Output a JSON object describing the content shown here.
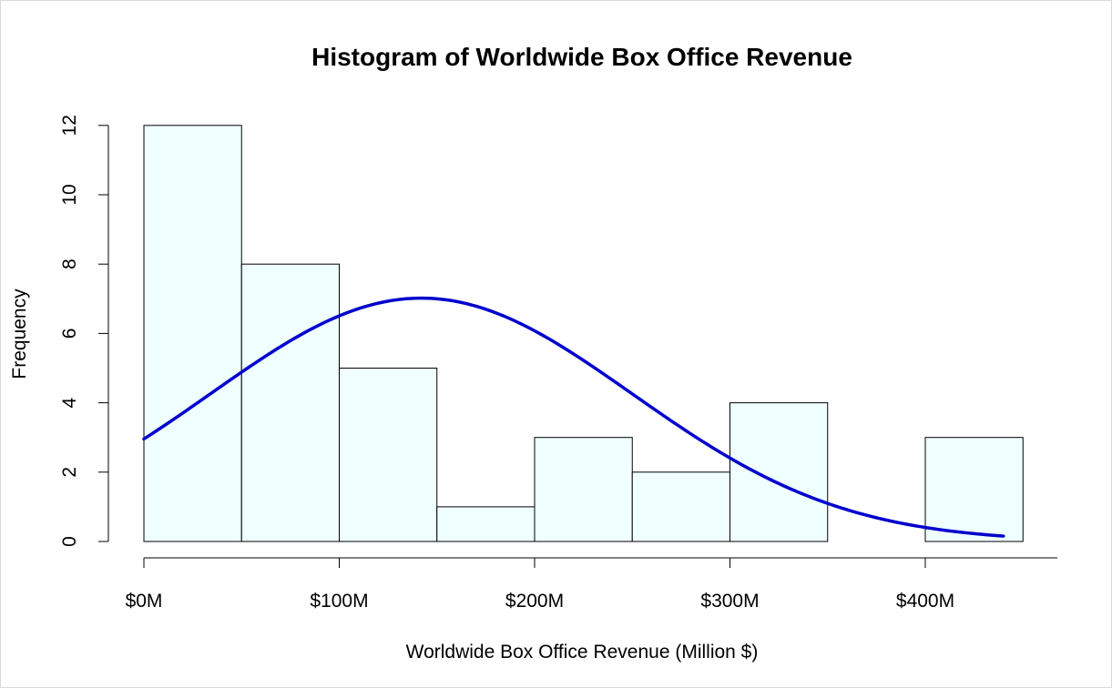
{
  "chart_data": {
    "type": "histogram",
    "title": "Histogram of Worldwide Box Office Revenue",
    "xlabel": "Worldwide Box Office Revenue (Million $)",
    "ylabel": "Frequency",
    "xlim": [
      0,
      450
    ],
    "ylim": [
      0,
      12
    ],
    "bin_width": 50,
    "bins": [
      {
        "from": 0,
        "to": 50,
        "count": 12
      },
      {
        "from": 50,
        "to": 100,
        "count": 8
      },
      {
        "from": 100,
        "to": 150,
        "count": 5
      },
      {
        "from": 150,
        "to": 200,
        "count": 1
      },
      {
        "from": 200,
        "to": 250,
        "count": 3
      },
      {
        "from": 250,
        "to": 300,
        "count": 2
      },
      {
        "from": 300,
        "to": 350,
        "count": 4
      },
      {
        "from": 350,
        "to": 400,
        "count": 0
      },
      {
        "from": 400,
        "to": 450,
        "count": 3
      }
    ],
    "x_ticks": [
      {
        "value": 0,
        "label": "$0M"
      },
      {
        "value": 100,
        "label": "$100M"
      },
      {
        "value": 200,
        "label": "$200M"
      },
      {
        "value": 300,
        "label": "$300M"
      },
      {
        "value": 400,
        "label": "$400M"
      }
    ],
    "y_ticks": [
      {
        "value": 0,
        "label": "0"
      },
      {
        "value": 2,
        "label": "2"
      },
      {
        "value": 4,
        "label": "4"
      },
      {
        "value": 6,
        "label": "6"
      },
      {
        "value": 8,
        "label": "8"
      },
      {
        "value": 10,
        "label": "10"
      },
      {
        "value": 12,
        "label": "12"
      }
    ],
    "overlay_curve": {
      "type": "normal",
      "mean": 142,
      "sd": 108,
      "scaled_to_counts": true,
      "x_range": [
        0,
        440
      ]
    },
    "grid": false,
    "legend": "none",
    "colors": {
      "bar_fill": "#f0ffff",
      "bar_border": "#000000",
      "curve": "#0000cd"
    }
  }
}
